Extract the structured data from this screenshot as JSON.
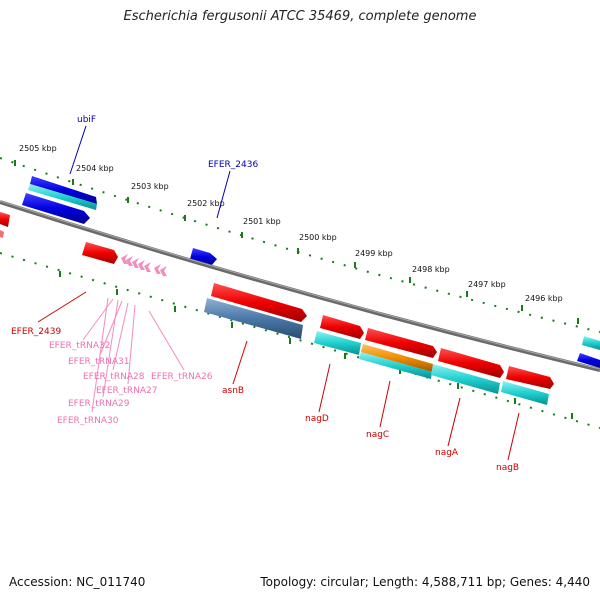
{
  "title": "Escherichia fergusonii ATCC 35469, complete genome",
  "accession": "Accession: NC_011740",
  "topology": "Topology: circular; Length: 4,588,711 bp; Genes: 4,440",
  "tick_labels": [
    "2505 kbp",
    "2504 kbp",
    "2503 kbp",
    "2502 kbp",
    "2501 kbp",
    "2500 kbp",
    "2499 kbp",
    "2498 kbp",
    "2497 kbp",
    "2496 kbp"
  ],
  "gene_labels": {
    "ubiF": "ubiF",
    "efer2436": "EFER_2436",
    "efer2439": "EFER_2439",
    "trna32": "EFER_tRNA32",
    "trna31": "EFER_tRNA31",
    "trna28": "EFER_tRNA28",
    "trna27": "EFER_tRNA27",
    "trna29": "EFER_tRNA29",
    "trna30": "EFER_tRNA30",
    "trna26": "EFER_tRNA26",
    "asnB": "asnB",
    "nagD": "nagD",
    "nagC": "nagC",
    "nagA": "nagA",
    "nagB": "nagB"
  },
  "colors": {
    "forward_cds": "#0000e0",
    "reverse_cds": "#e00000",
    "trna": "#f070b0",
    "tick": "#1a7a1a",
    "backbone": "#777777",
    "gc_blue": "#00d8d8",
    "gc_steel": "#3b6fa0",
    "gc_orange": "#f08c00"
  }
}
